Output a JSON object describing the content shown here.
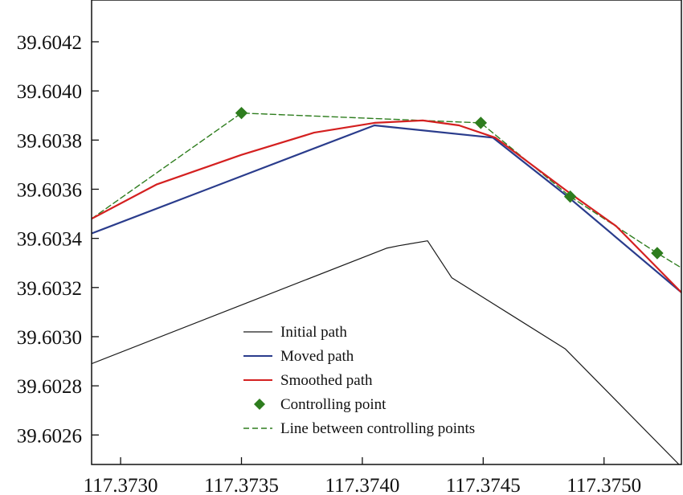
{
  "chart_data": {
    "type": "line",
    "title": "",
    "xlabel": "",
    "ylabel": "",
    "xlim": [
      117.37288,
      117.37532
    ],
    "ylim": [
      39.60248,
      39.60437
    ],
    "grid": false,
    "legend_position": "bottom-center",
    "x_ticks": [
      117.373,
      117.3735,
      117.374,
      117.3745,
      117.375
    ],
    "x_tick_labels": [
      "117.3730",
      "117.3735",
      "117.3740",
      "117.3745",
      "117.3750"
    ],
    "y_ticks": [
      39.6026,
      39.6028,
      39.603,
      39.6032,
      39.6034,
      39.6036,
      39.6038,
      39.604,
      39.6042
    ],
    "y_tick_labels": [
      "39.6026",
      "39.6028",
      "39.6030",
      "39.6032",
      "39.6034",
      "39.6036",
      "39.6038",
      "39.6040",
      "39.6042"
    ],
    "series": [
      {
        "name": "Initial path",
        "style": "line",
        "color": "#1a1a1a",
        "x": [
          117.37288,
          117.3741,
          117.37415,
          117.37427,
          117.37437,
          117.37484,
          117.37531
        ],
        "y": [
          39.60289,
          39.60336,
          39.60337,
          39.60339,
          39.60324,
          39.60295,
          39.60248
        ]
      },
      {
        "name": "Moved path",
        "style": "line",
        "color": "#2a3c8c",
        "x": [
          117.37288,
          117.37405,
          117.37454,
          117.37485,
          117.37532
        ],
        "y": [
          39.60342,
          39.60386,
          39.60381,
          39.60357,
          39.60318
        ]
      },
      {
        "name": "Smoothed path",
        "style": "line",
        "color": "#d42020",
        "x": [
          117.37288,
          117.37315,
          117.3735,
          117.3738,
          117.37405,
          117.37425,
          117.3744,
          117.37455,
          117.3747,
          117.37485,
          117.37505,
          117.37532
        ],
        "y": [
          39.60348,
          39.60362,
          39.60374,
          39.60383,
          39.60387,
          39.60388,
          39.60386,
          39.60381,
          39.6037,
          39.60359,
          39.60345,
          39.60318
        ]
      },
      {
        "name": "Controlling point",
        "style": "marker",
        "color": "#2e7d1e",
        "x": [
          117.3735,
          117.37449,
          117.37486,
          117.37522
        ],
        "y": [
          39.60391,
          39.60387,
          39.60357,
          39.60334
        ]
      },
      {
        "name": "Line between controlling points",
        "style": "dashed",
        "color": "#2e7d1e",
        "x": [
          117.37288,
          117.3735,
          117.37449,
          117.37486,
          117.37522,
          117.37532
        ],
        "y": [
          39.60348,
          39.60391,
          39.60387,
          39.60357,
          39.60334,
          39.60328
        ]
      }
    ]
  }
}
